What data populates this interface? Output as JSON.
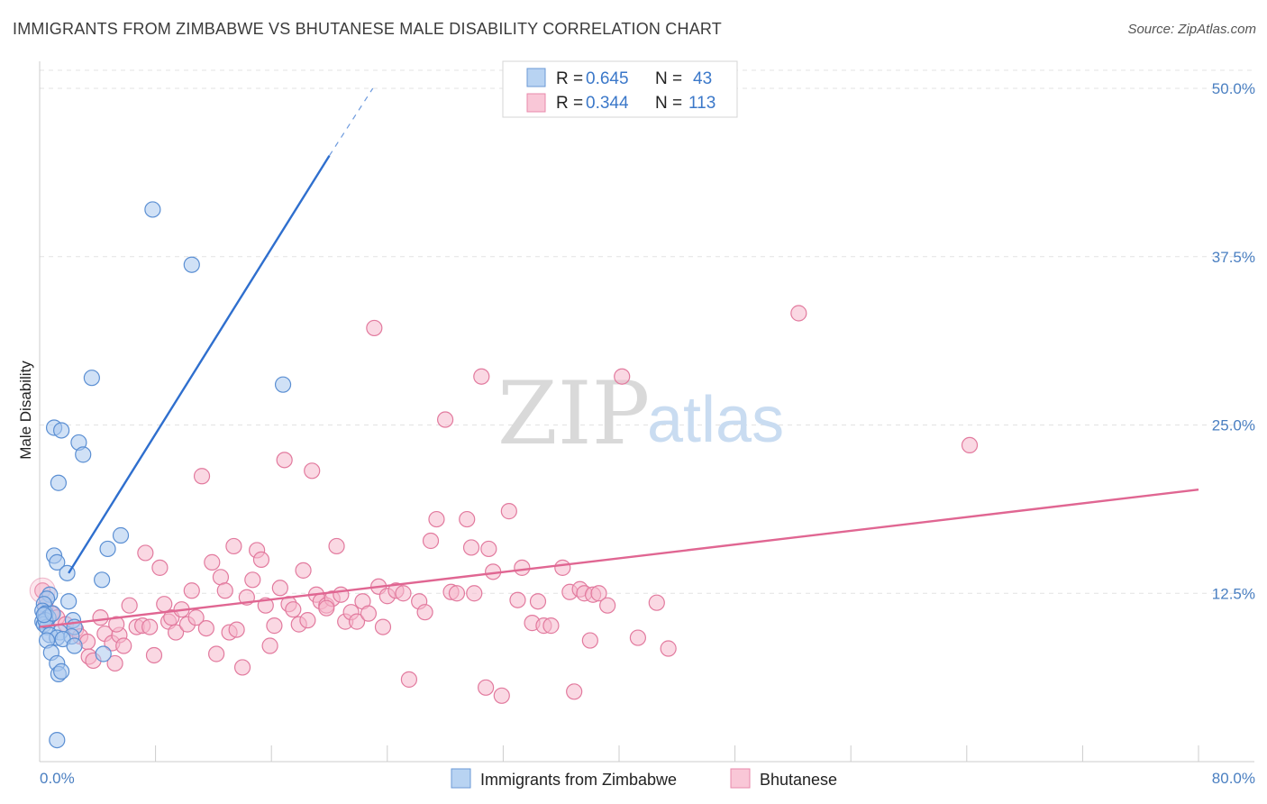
{
  "title": "IMMIGRANTS FROM ZIMBABWE VS BHUTANESE MALE DISABILITY CORRELATION CHART",
  "source": "Source: ZipAtlas.com",
  "watermark": {
    "zip": "ZIP",
    "atlas": "atlas"
  },
  "colors": {
    "blue_fill": "#a9c9ee",
    "blue_stroke": "#5b8fd3",
    "blue_line": "#2f6fce",
    "pink_fill": "#f6b8cc",
    "pink_stroke": "#e27a9e",
    "pink_line": "#e06692",
    "axis_text": "#4a7fc1",
    "grid": "#e3e3e3"
  },
  "legend": {
    "rows": [
      {
        "r_label": "R =",
        "r_value": "0.645",
        "n_label": "N =",
        "n_value": "43"
      },
      {
        "r_label": "R =",
        "r_value": "0.344",
        "n_label": "N =",
        "n_value": "113"
      }
    ]
  },
  "bottom_legend": [
    "Immigrants from Zimbabwe",
    "Bhutanese"
  ],
  "chart_data": {
    "type": "scatter",
    "xlabel": "",
    "ylabel": "Male Disability",
    "xlim": [
      0,
      80
    ],
    "ylim": [
      0,
      50
    ],
    "x_tick_labels": [
      "0.0%",
      "80.0%"
    ],
    "y_tick_labels": [
      "12.5%",
      "25.0%",
      "37.5%",
      "50.0%"
    ],
    "y_ticks": [
      12.5,
      25.0,
      37.5,
      50.0
    ],
    "grid": true,
    "series": [
      {
        "name": "Immigrants from Zimbabwe",
        "color": "blue",
        "points": [
          [
            7.8,
            41.0
          ],
          [
            10.5,
            36.9
          ],
          [
            3.6,
            28.5
          ],
          [
            16.8,
            28.0
          ],
          [
            1.0,
            24.8
          ],
          [
            1.5,
            24.6
          ],
          [
            2.7,
            23.7
          ],
          [
            3.0,
            22.8
          ],
          [
            1.3,
            20.7
          ],
          [
            5.6,
            16.8
          ],
          [
            4.7,
            15.8
          ],
          [
            1.0,
            15.3
          ],
          [
            1.2,
            14.8
          ],
          [
            1.9,
            14.0
          ],
          [
            4.3,
            13.5
          ],
          [
            0.7,
            12.4
          ],
          [
            0.5,
            12.1
          ],
          [
            0.3,
            11.7
          ],
          [
            2.0,
            11.9
          ],
          [
            0.2,
            11.2
          ],
          [
            0.4,
            11.0
          ],
          [
            0.6,
            10.7
          ],
          [
            0.2,
            10.4
          ],
          [
            0.3,
            10.2
          ],
          [
            2.3,
            10.5
          ],
          [
            0.5,
            10.0
          ],
          [
            1.4,
            9.6
          ],
          [
            2.4,
            10.0
          ],
          [
            0.7,
            9.4
          ],
          [
            1.2,
            9.2
          ],
          [
            2.2,
            9.3
          ],
          [
            0.5,
            9.0
          ],
          [
            1.6,
            9.1
          ],
          [
            2.4,
            8.6
          ],
          [
            0.8,
            8.1
          ],
          [
            4.4,
            8.0
          ],
          [
            1.2,
            7.3
          ],
          [
            1.3,
            6.5
          ],
          [
            1.5,
            6.7
          ],
          [
            1.2,
            1.6
          ],
          [
            0.4,
            10.5
          ],
          [
            0.9,
            11.0
          ],
          [
            0.3,
            10.9
          ]
        ],
        "trend": {
          "x": [
            2.0,
            20.0
          ],
          "y": [
            14.0,
            45.0
          ],
          "dash_to": [
            23.0,
            50.0
          ]
        }
      },
      {
        "name": "Bhutanese",
        "color": "pink",
        "points": [
          [
            0.2,
            12.7
          ],
          [
            0.4,
            11.5
          ],
          [
            0.8,
            11.0
          ],
          [
            1.2,
            10.7
          ],
          [
            1.8,
            10.2
          ],
          [
            2.5,
            9.8
          ],
          [
            2.8,
            9.3
          ],
          [
            3.3,
            8.9
          ],
          [
            3.4,
            7.8
          ],
          [
            3.7,
            7.5
          ],
          [
            4.2,
            10.7
          ],
          [
            4.5,
            9.5
          ],
          [
            5.0,
            8.8
          ],
          [
            5.2,
            7.3
          ],
          [
            5.5,
            9.4
          ],
          [
            5.8,
            8.6
          ],
          [
            6.2,
            11.6
          ],
          [
            6.7,
            10.0
          ],
          [
            7.1,
            10.1
          ],
          [
            7.3,
            15.5
          ],
          [
            7.6,
            10.0
          ],
          [
            7.9,
            7.9
          ],
          [
            8.3,
            14.4
          ],
          [
            8.6,
            11.7
          ],
          [
            8.9,
            10.4
          ],
          [
            9.1,
            10.7
          ],
          [
            9.4,
            9.6
          ],
          [
            9.8,
            11.3
          ],
          [
            10.2,
            10.2
          ],
          [
            10.5,
            12.7
          ],
          [
            10.8,
            10.7
          ],
          [
            11.2,
            21.2
          ],
          [
            11.5,
            9.9
          ],
          [
            11.9,
            14.8
          ],
          [
            12.2,
            8.0
          ],
          [
            12.5,
            13.7
          ],
          [
            12.8,
            12.7
          ],
          [
            13.1,
            9.6
          ],
          [
            13.4,
            16.0
          ],
          [
            13.6,
            9.8
          ],
          [
            14.0,
            7.0
          ],
          [
            14.3,
            12.2
          ],
          [
            14.7,
            13.5
          ],
          [
            15.0,
            15.7
          ],
          [
            15.3,
            15.0
          ],
          [
            15.6,
            11.6
          ],
          [
            15.9,
            8.6
          ],
          [
            16.2,
            10.1
          ],
          [
            16.6,
            12.9
          ],
          [
            16.9,
            22.4
          ],
          [
            17.2,
            11.7
          ],
          [
            17.5,
            11.3
          ],
          [
            17.9,
            10.2
          ],
          [
            18.2,
            14.2
          ],
          [
            18.5,
            10.5
          ],
          [
            18.8,
            21.6
          ],
          [
            19.1,
            12.4
          ],
          [
            19.4,
            11.9
          ],
          [
            19.8,
            11.6
          ],
          [
            20.2,
            12.1
          ],
          [
            20.5,
            16.0
          ],
          [
            20.8,
            12.4
          ],
          [
            21.1,
            10.4
          ],
          [
            21.5,
            11.1
          ],
          [
            21.9,
            10.4
          ],
          [
            22.3,
            11.9
          ],
          [
            22.7,
            11.0
          ],
          [
            23.1,
            32.2
          ],
          [
            23.4,
            13.0
          ],
          [
            23.7,
            10.0
          ],
          [
            24.0,
            12.3
          ],
          [
            24.6,
            12.7
          ],
          [
            25.1,
            12.5
          ],
          [
            25.5,
            6.1
          ],
          [
            26.2,
            11.9
          ],
          [
            26.6,
            11.1
          ],
          [
            27.0,
            16.4
          ],
          [
            27.4,
            18.0
          ],
          [
            28.0,
            25.4
          ],
          [
            28.4,
            12.6
          ],
          [
            28.8,
            12.5
          ],
          [
            29.5,
            18.0
          ],
          [
            29.8,
            15.9
          ],
          [
            30.5,
            28.6
          ],
          [
            30.8,
            5.5
          ],
          [
            31.0,
            15.8
          ],
          [
            31.3,
            14.1
          ],
          [
            31.9,
            4.9
          ],
          [
            32.4,
            18.6
          ],
          [
            33.0,
            12.0
          ],
          [
            33.3,
            14.4
          ],
          [
            34.0,
            10.3
          ],
          [
            34.4,
            11.9
          ],
          [
            34.8,
            10.1
          ],
          [
            35.3,
            10.1
          ],
          [
            36.1,
            14.4
          ],
          [
            36.6,
            12.6
          ],
          [
            36.9,
            5.2
          ],
          [
            37.3,
            12.8
          ],
          [
            37.6,
            12.5
          ],
          [
            38.0,
            9.0
          ],
          [
            38.2,
            12.4
          ],
          [
            38.6,
            12.5
          ],
          [
            39.2,
            11.6
          ],
          [
            40.2,
            28.6
          ],
          [
            41.3,
            9.2
          ],
          [
            42.6,
            11.8
          ],
          [
            43.4,
            8.4
          ],
          [
            52.4,
            33.3
          ],
          [
            64.2,
            23.5
          ],
          [
            30.0,
            12.5
          ],
          [
            19.8,
            11.4
          ],
          [
            5.3,
            10.2
          ]
        ],
        "trend": {
          "x": [
            0.0,
            80.0
          ],
          "y": [
            10.0,
            20.2
          ]
        }
      }
    ]
  }
}
